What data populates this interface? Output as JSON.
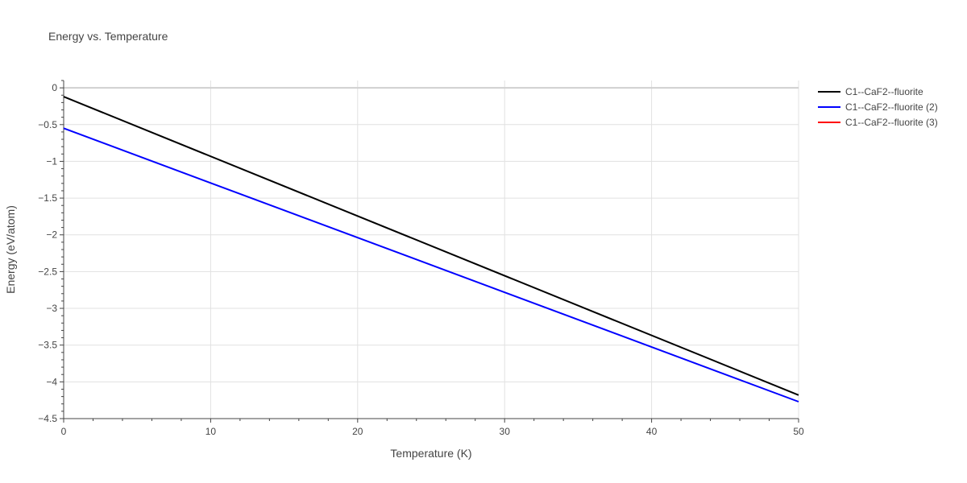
{
  "chart_data": {
    "type": "line",
    "title": "Energy vs. Temperature",
    "xlabel": "Temperature (K)",
    "ylabel": "Energy (eV/atom)",
    "xlim": [
      0,
      50
    ],
    "ylim": [
      -4.5,
      0.1
    ],
    "x_ticks": [
      0,
      10,
      20,
      30,
      40,
      50
    ],
    "x_tick_labels": [
      "0",
      "10",
      "20",
      "30",
      "40",
      "50"
    ],
    "y_ticks": [
      0,
      -0.5,
      -1,
      -1.5,
      -2,
      -2.5,
      -3,
      -3.5,
      -4,
      -4.5
    ],
    "y_tick_labels": [
      "0",
      "−0.5",
      "−1",
      "−1.5",
      "−2",
      "−2.5",
      "−3",
      "−3.5",
      "−4",
      "−4.5"
    ],
    "grid": true,
    "legend_position": "top-right",
    "series": [
      {
        "name": "C1--CaF2--fluorite",
        "color": "#000000",
        "x": [
          0,
          50
        ],
        "y": [
          -0.12,
          -4.18
        ]
      },
      {
        "name": "C1--CaF2--fluorite (2)",
        "color": "#0000ff",
        "x": [
          0,
          50
        ],
        "y": [
          -0.55,
          -4.27
        ]
      },
      {
        "name": "C1--CaF2--fluorite (3)",
        "color": "#ff0000",
        "x": [],
        "y": []
      }
    ]
  }
}
